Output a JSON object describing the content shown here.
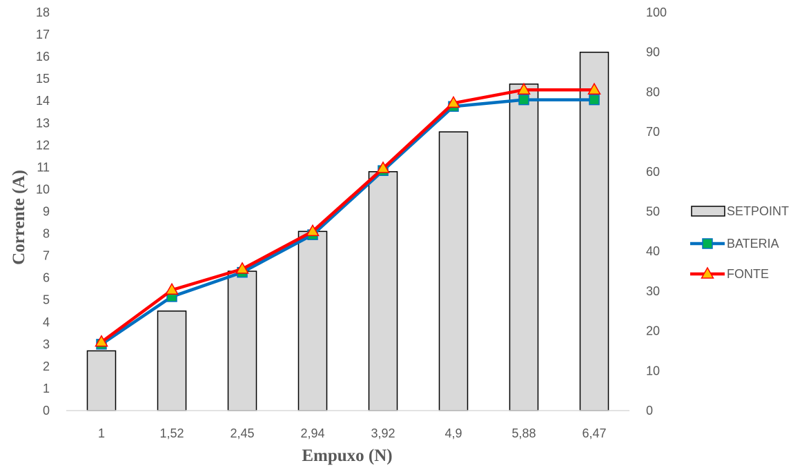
{
  "chart_data": {
    "type": "bar",
    "categories": [
      "1",
      "1,52",
      "2,45",
      "2,94",
      "3,92",
      "4,9",
      "5,88",
      "6,47"
    ],
    "xlabel": "Empuxo (N)",
    "ylabel": "Corrente (A)",
    "ylim": [
      0,
      18
    ],
    "y_ticks": [
      "0",
      "1",
      "2",
      "3",
      "4",
      "5",
      "6",
      "7",
      "8",
      "9",
      "10",
      "11",
      "12",
      "13",
      "14",
      "15",
      "16",
      "17",
      "18"
    ],
    "y2lim": [
      0,
      100
    ],
    "y2_ticks": [
      "0",
      "10",
      "20",
      "30",
      "40",
      "50",
      "60",
      "70",
      "80",
      "90",
      "100"
    ],
    "grid": false,
    "legend_position": "right",
    "series": [
      {
        "name": "SETPOINT",
        "kind": "bar",
        "axis": "right",
        "color": "#d9d9d9",
        "values": [
          15,
          25,
          35,
          45,
          60,
          70,
          82,
          90
        ]
      },
      {
        "name": "BATERIA",
        "kind": "line",
        "axis": "left",
        "color": "#0070c0",
        "marker": "square",
        "marker_color": "#00b050",
        "values": [
          3.0,
          5.15,
          6.25,
          7.95,
          10.85,
          13.75,
          14.05,
          14.05
        ]
      },
      {
        "name": "FONTE",
        "kind": "line",
        "axis": "left",
        "color": "#ff0000",
        "marker": "triangle",
        "marker_color": "#ffc000",
        "values": [
          3.1,
          5.45,
          6.4,
          8.1,
          10.95,
          13.9,
          14.5,
          14.5
        ]
      }
    ]
  }
}
